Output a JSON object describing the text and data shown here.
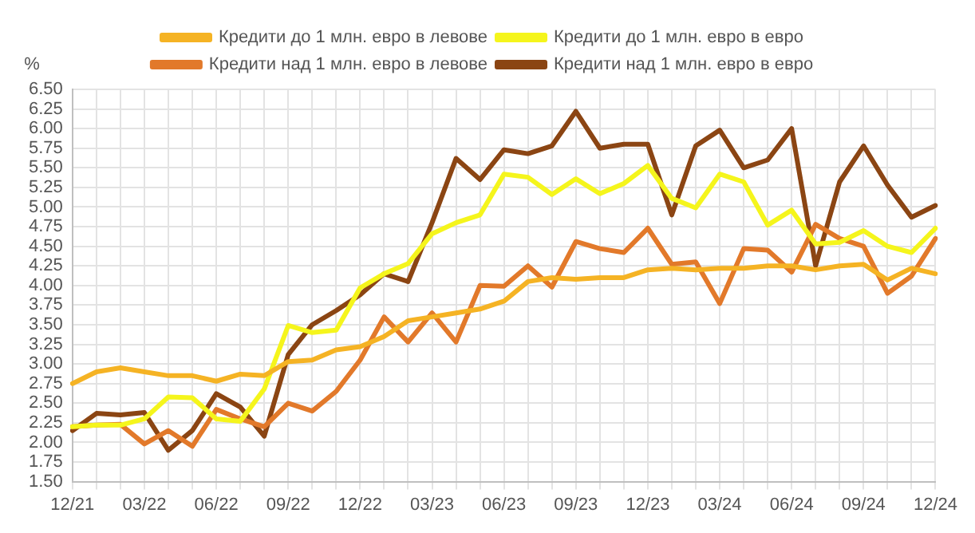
{
  "chart_data": {
    "type": "line",
    "ylabel": "%",
    "categories": [
      "12/21",
      null,
      null,
      "03/22",
      null,
      null,
      "06/22",
      null,
      null,
      "09/22",
      null,
      null,
      "12/22",
      null,
      null,
      "03/23",
      null,
      null,
      "06/23",
      null,
      null,
      "09/23",
      null,
      null,
      "12/23",
      null,
      null,
      "03/24",
      null,
      null,
      "06/24",
      null,
      null,
      "09/24",
      null,
      null,
      "12/24"
    ],
    "series": [
      {
        "name": "Кредити до 1 млн. евро в левове",
        "color": "#f5b324",
        "values": [
          2.75,
          2.9,
          2.95,
          2.9,
          2.85,
          2.85,
          2.78,
          2.87,
          2.85,
          3.03,
          3.05,
          3.18,
          3.22,
          3.35,
          3.55,
          3.6,
          3.65,
          3.7,
          3.8,
          4.05,
          4.1,
          4.08,
          4.1,
          4.1,
          4.2,
          4.22,
          4.2,
          4.22,
          4.22,
          4.25,
          4.25,
          4.2,
          4.25,
          4.27,
          4.07,
          4.22,
          4.15
        ]
      },
      {
        "name": "Кредити до 1 млн. евро в евро",
        "color": "#f5f51c",
        "values": [
          2.2,
          2.22,
          2.22,
          2.3,
          2.58,
          2.57,
          2.3,
          2.27,
          2.68,
          3.49,
          3.4,
          3.43,
          3.97,
          4.15,
          4.28,
          4.66,
          4.8,
          4.9,
          5.42,
          5.38,
          5.16,
          5.36,
          5.17,
          5.3,
          5.53,
          5.11,
          4.99,
          5.42,
          5.32,
          4.77,
          4.96,
          4.53,
          4.55,
          4.7,
          4.5,
          4.42,
          4.73
        ]
      },
      {
        "name": "Кредити над 1 млн. евро в левове",
        "color": "#e2792a",
        "values": [
          2.2,
          2.22,
          2.23,
          1.98,
          2.15,
          1.95,
          2.42,
          2.3,
          2.2,
          2.5,
          2.4,
          2.65,
          3.05,
          3.6,
          3.28,
          3.65,
          3.28,
          4.0,
          3.99,
          4.25,
          3.98,
          4.56,
          4.47,
          4.42,
          4.73,
          4.27,
          4.3,
          3.77,
          4.47,
          4.45,
          4.17,
          4.78,
          4.6,
          4.5,
          3.9,
          4.12,
          4.6
        ]
      },
      {
        "name": "Кредити над 1 млн. евро в евро",
        "color": "#8b4513",
        "values": [
          2.15,
          2.37,
          2.35,
          2.38,
          1.9,
          2.15,
          2.62,
          2.45,
          2.08,
          3.12,
          3.5,
          3.68,
          3.88,
          4.15,
          4.05,
          4.8,
          5.62,
          5.35,
          5.73,
          5.68,
          5.78,
          6.22,
          5.75,
          5.8,
          5.8,
          4.9,
          5.78,
          5.98,
          5.5,
          5.6,
          6.0,
          4.25,
          5.32,
          5.78,
          5.28,
          4.87,
          5.02
        ]
      }
    ],
    "ylim": [
      1.5,
      6.5
    ],
    "yticks": [
      {
        "value": 1.5,
        "label": "1.50"
      },
      {
        "value": 1.75,
        "label": "1.75"
      },
      {
        "value": 2,
        "label": "2.00"
      },
      {
        "value": 2.25,
        "label": "2.25"
      },
      {
        "value": 2.5,
        "label": "2.50"
      },
      {
        "value": 2.75,
        "label": "2.75"
      },
      {
        "value": 3,
        "label": "3.00"
      },
      {
        "value": 3.25,
        "label": "3.25"
      },
      {
        "value": 3.5,
        "label": "3.50"
      },
      {
        "value": 3.75,
        "label": "3.75"
      },
      {
        "value": 4,
        "label": "4.00"
      },
      {
        "value": 4.25,
        "label": "4.25"
      },
      {
        "value": 4.5,
        "label": "4.50"
      },
      {
        "value": 4.75,
        "label": "4.75"
      },
      {
        "value": 5,
        "label": "5.00"
      },
      {
        "value": 5.25,
        "label": "5.25"
      },
      {
        "value": 5.5,
        "label": "5.50"
      },
      {
        "value": 5.75,
        "label": "5.75"
      },
      {
        "value": 6,
        "label": "6.00"
      },
      {
        "value": 6.25,
        "label": "6.25"
      },
      {
        "value": 6.5,
        "label": "6.50"
      }
    ],
    "grid": true,
    "legend": "top",
    "marker": "none",
    "line_style": "solid"
  }
}
